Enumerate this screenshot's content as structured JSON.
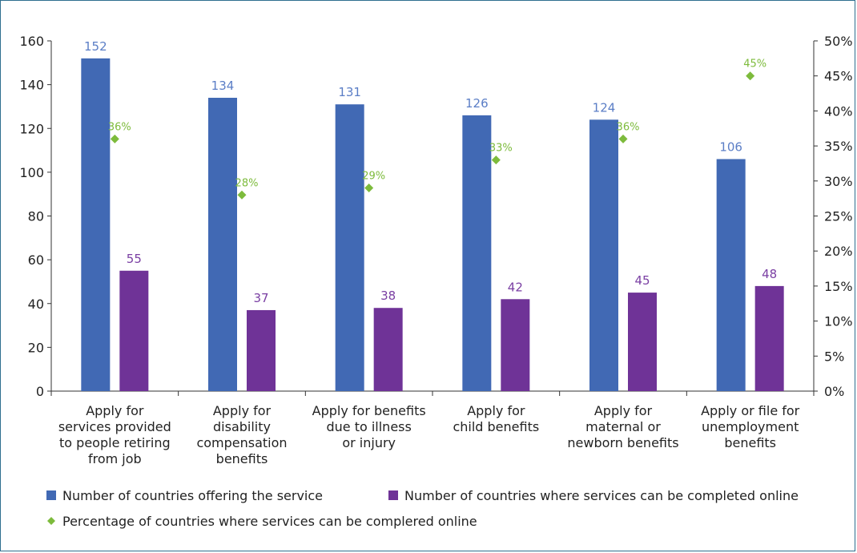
{
  "chart_data": {
    "type": "bar",
    "categories": [
      [
        "Apply for",
        "services  provided",
        "to people retiring",
        "from job"
      ],
      [
        "Apply  for",
        "disability",
        "compensation",
        "benefits"
      ],
      [
        "Apply for benefits",
        "due to illness",
        "or injury"
      ],
      [
        "Apply for",
        "child benefits"
      ],
      [
        "Apply for",
        "maternal or",
        "newborn benefits"
      ],
      [
        "Apply or file for",
        "unemployment",
        "benefits"
      ]
    ],
    "series": [
      {
        "name": "Number of countries offering the service",
        "axis": "left",
        "type": "bar",
        "color": "#4169b4",
        "label_color": "#5b7ec6",
        "values": [
          152,
          134,
          131,
          126,
          124,
          106
        ],
        "labels": [
          "152",
          "134",
          "131",
          "126",
          "124",
          "106"
        ]
      },
      {
        "name": "Number of countries where services can be completed online",
        "axis": "left",
        "type": "bar",
        "color": "#6f3397",
        "label_color": "#7a3fa3",
        "values": [
          55,
          37,
          38,
          42,
          45,
          48
        ],
        "labels": [
          "55",
          "37",
          "38",
          "42",
          "45",
          "48"
        ]
      },
      {
        "name": "Percentage of countries where services can be complered online",
        "axis": "right",
        "type": "scatter",
        "marker": "diamond",
        "color": "#7dbb3c",
        "values": [
          36,
          28,
          29,
          33,
          36,
          45
        ],
        "labels": [
          "36%",
          "28%",
          "29%",
          "33%",
          "36%",
          "45%"
        ]
      }
    ],
    "y_left": {
      "ylim": [
        0,
        160
      ],
      "ticks": [
        0,
        20,
        40,
        60,
        80,
        100,
        120,
        140,
        160
      ],
      "tick_labels": [
        "0",
        "20",
        "40",
        "60",
        "80",
        "100",
        "120",
        "140",
        "160"
      ]
    },
    "y_right": {
      "ylim": [
        0,
        50
      ],
      "ticks": [
        0,
        5,
        10,
        15,
        20,
        25,
        30,
        35,
        40,
        45,
        50
      ],
      "tick_labels": [
        "0%",
        "5%",
        "10%",
        "15%",
        "20%",
        "25%",
        "30%",
        "35%",
        "40%",
        "45%",
        "50%"
      ]
    },
    "legend_placement": "bottom-left",
    "grid": false
  }
}
